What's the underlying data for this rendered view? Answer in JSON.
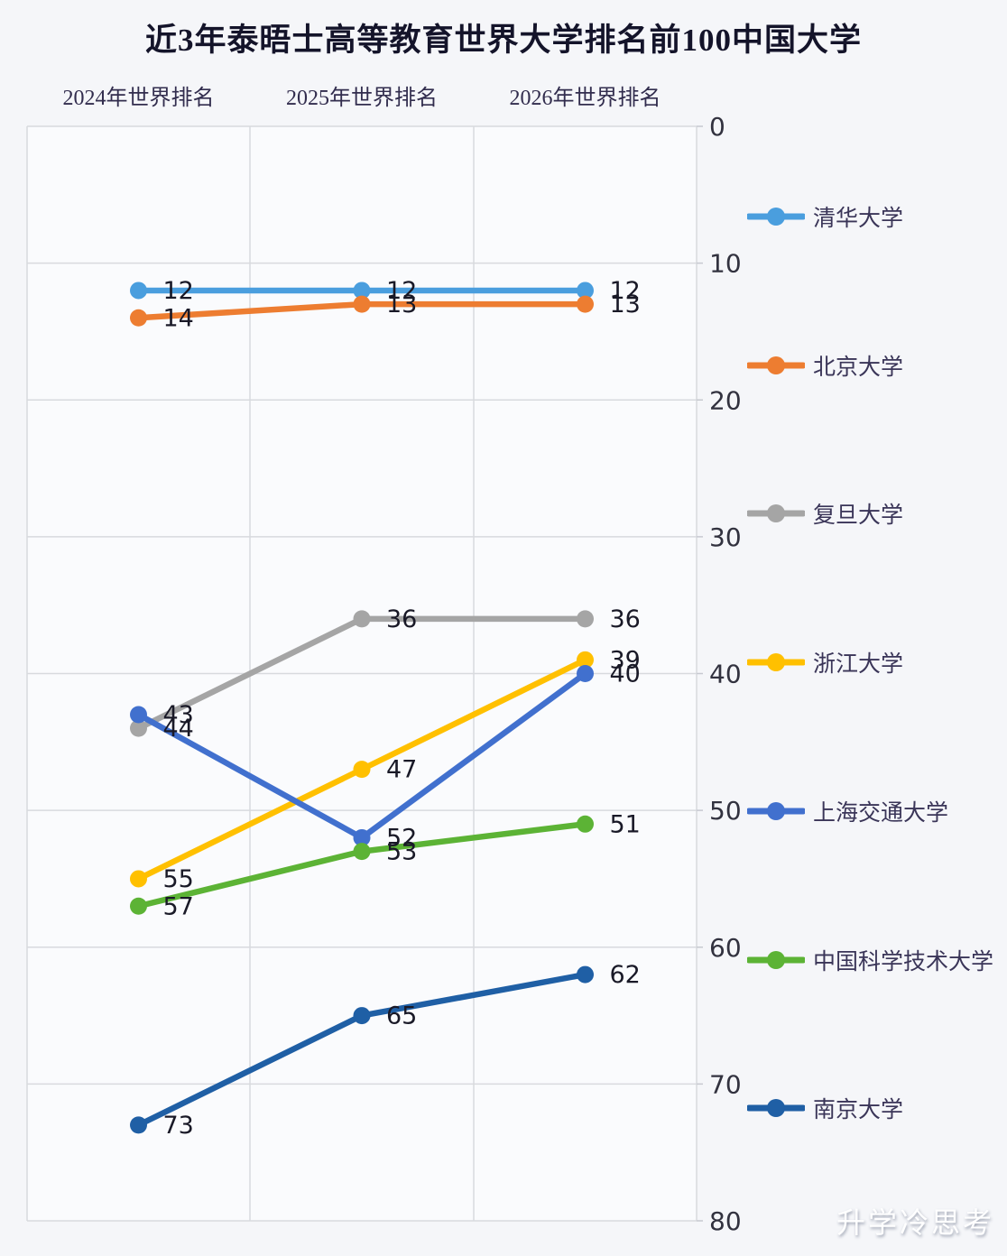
{
  "title": "近3年泰晤士高等教育世界大学排名前100中国大学",
  "watermark": "升学冷思考",
  "chart_data": {
    "type": "line",
    "title": "近3年泰晤士高等教育世界大学排名前100中国大学",
    "categories": [
      "2024年世界排名",
      "2025年世界排名",
      "2026年世界排名"
    ],
    "marker": "circle",
    "grid": true,
    "legend_position": "right",
    "y_axis": {
      "position": "right",
      "inverted_rank_axis": true,
      "min": 0,
      "max": 80,
      "ticks": [
        0,
        10,
        20,
        30,
        40,
        50,
        60,
        70,
        80
      ]
    },
    "series": [
      {
        "name": "清华大学",
        "color": "#4A9EDE",
        "values": [
          12,
          12,
          12
        ]
      },
      {
        "name": "北京大学",
        "color": "#ED7D31",
        "values": [
          14,
          13,
          13
        ]
      },
      {
        "name": "复旦大学",
        "color": "#A5A5A5",
        "values": [
          44,
          36,
          36
        ]
      },
      {
        "name": "浙江大学",
        "color": "#FFC000",
        "values": [
          55,
          47,
          39
        ]
      },
      {
        "name": "上海交通大学",
        "color": "#4170CE",
        "values": [
          43,
          52,
          40
        ]
      },
      {
        "name": "中国科学技术大学",
        "color": "#5CB335",
        "values": [
          57,
          53,
          51
        ]
      },
      {
        "name": "南京大学",
        "color": "#1F5FA5",
        "values": [
          73,
          65,
          62
        ]
      }
    ]
  }
}
